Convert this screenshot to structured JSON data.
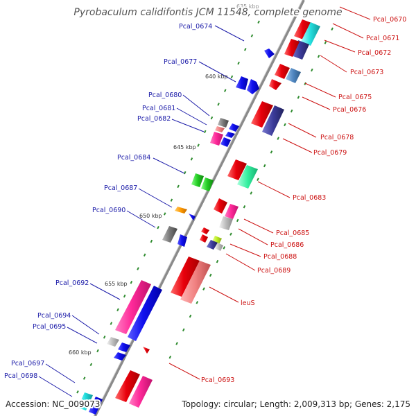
{
  "title": "Pyrobaculum calidifontis JCM 11548, complete genome",
  "accession": "Accession: NC_009073",
  "topology": "Topology: circular; Length: 2,009,313 bp; Genes: 2,175",
  "kbp_labels": [
    "635 kbp",
    "640 kbp",
    "645 kbp",
    "650 kbp",
    "655 kbp",
    "660 kbp"
  ],
  "left_genes": [
    "Pcal_0674",
    "Pcal_0677",
    "Pcal_0680",
    "Pcal_0681",
    "Pcal_0682",
    "Pcal_0684",
    "Pcal_0687",
    "Pcal_0690",
    "Pcal_0692",
    "Pcal_0694",
    "Pcal_0695",
    "Pcal_0697",
    "Pcal_0698"
  ],
  "right_genes": [
    "Pcal_0670",
    "Pcal_0671",
    "Pcal_0672",
    "Pcal_0673",
    "Pcal_0675",
    "Pcal_0676",
    "Pcal_0678",
    "Pcal_0679",
    "Pcal_0683",
    "Pcal_0685",
    "Pcal_0686",
    "Pcal_0688",
    "Pcal_0689",
    "leuS",
    "Pcal_0693"
  ],
  "colors": {
    "forward_label": "#1a1aa8",
    "reverse_label": "#cc1111",
    "backbone": "#8a8a8a",
    "tick": "#2e8b2e",
    "red": "#e8000b",
    "blue": "#1010ee",
    "pink": "#ff2a9a",
    "salmon": "#f08080",
    "cyan": "#22dddd",
    "navy": "#3b3b9a",
    "steel": "#4f86c0",
    "green": "#22cc22",
    "mint": "#33f0a0",
    "grey": "#777777",
    "silver": "#bbbbbb",
    "orange": "#ff9900",
    "lime": "#bbee22"
  }
}
